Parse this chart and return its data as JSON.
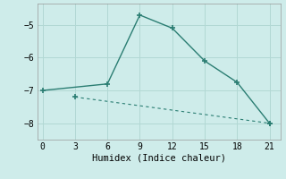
{
  "xlabel": "Humidex (Indice chaleur)",
  "background_color": "#ceecea",
  "grid_color": "#b2d8d4",
  "line_color": "#2a7d72",
  "line1_x": [
    0,
    6,
    9,
    12,
    15,
    18,
    21
  ],
  "line1_y": [
    -7.0,
    -6.8,
    -4.7,
    -5.1,
    -6.1,
    -6.75,
    -8.0
  ],
  "line2_x": [
    3,
    21
  ],
  "line2_y": [
    -7.2,
    -8.0
  ],
  "xlim": [
    -0.5,
    22
  ],
  "ylim": [
    -8.5,
    -4.35
  ],
  "xticks": [
    0,
    3,
    6,
    9,
    12,
    15,
    18,
    21
  ],
  "yticks": [
    -8,
    -7,
    -6,
    -5
  ],
  "marker": "+"
}
